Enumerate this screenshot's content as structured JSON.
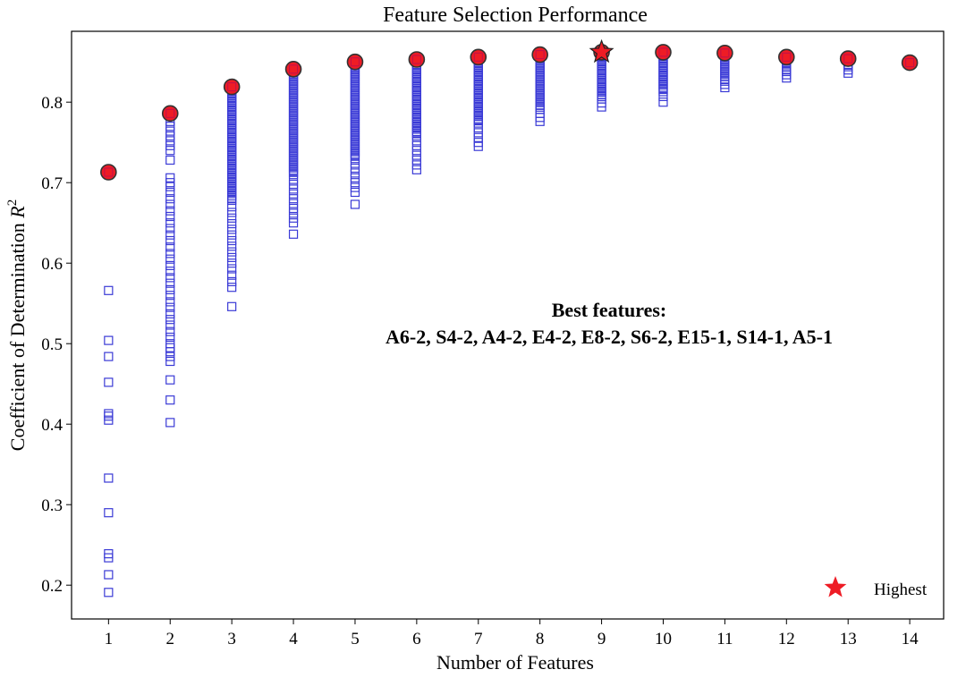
{
  "chart_data": {
    "type": "scatter",
    "title": "Feature Selection Performance",
    "xlabel": "Number of Features",
    "ylabel_main": "Coefficient of Determination ",
    "ylabel_sym": "R",
    "ylabel_sup": "2",
    "xlim": [
      0.4,
      14.55
    ],
    "ylim": [
      0.158,
      0.888
    ],
    "xticks": [
      1,
      2,
      3,
      4,
      5,
      6,
      7,
      8,
      9,
      10,
      11,
      12,
      13,
      14
    ],
    "yticks": [
      0.2,
      0.3,
      0.4,
      0.5,
      0.6,
      0.7,
      0.8
    ],
    "ytick_labels": [
      "0.2",
      "0.3",
      "0.4",
      "0.5",
      "0.6",
      "0.7",
      "0.8"
    ],
    "grid": false,
    "series": [
      {
        "role": "subsets",
        "color": "#3a3ad6",
        "marker": "open-square",
        "columns": [
          {
            "x": 1,
            "points": [
              0.191,
              0.213,
              0.234,
              0.239,
              0.29,
              0.333,
              0.405,
              0.41,
              0.413,
              0.452,
              0.484,
              0.504,
              0.566,
              0.713
            ],
            "dense": []
          },
          {
            "x": 2,
            "points": [
              0.402,
              0.43,
              0.455,
              0.478,
              0.484,
              0.49,
              0.495,
              0.5,
              0.508,
              0.515,
              0.523,
              0.53,
              0.537,
              0.545,
              0.552,
              0.56,
              0.567,
              0.575,
              0.582,
              0.59,
              0.597,
              0.605,
              0.612,
              0.62,
              0.628,
              0.635,
              0.643,
              0.65,
              0.658,
              0.665,
              0.673,
              0.68,
              0.688,
              0.695,
              0.7,
              0.706,
              0.728,
              0.74,
              0.746,
              0.752,
              0.758,
              0.764,
              0.77,
              0.776,
              0.786
            ],
            "dense": []
          },
          {
            "x": 3,
            "points": [
              0.546,
              0.57,
              0.577,
              0.585,
              0.593,
              0.6,
              0.607,
              0.614,
              0.621,
              0.628,
              0.635,
              0.642,
              0.649,
              0.656,
              0.663,
              0.67
            ],
            "dense": [
              [
                0.678,
                0.819
              ]
            ]
          },
          {
            "x": 4,
            "points": [
              0.636,
              0.65,
              0.656,
              0.662,
              0.668,
              0.674,
              0.68,
              0.686,
              0.692,
              0.698,
              0.704
            ],
            "dense": [
              [
                0.71,
                0.841
              ]
            ]
          },
          {
            "x": 5,
            "points": [
              0.673,
              0.688,
              0.694,
              0.7,
              0.706,
              0.712,
              0.718,
              0.724
            ],
            "dense": [
              [
                0.73,
                0.85
              ]
            ]
          },
          {
            "x": 6,
            "points": [
              0.716,
              0.722,
              0.728,
              0.734,
              0.74,
              0.746,
              0.752
            ],
            "dense": [
              [
                0.758,
                0.853
              ]
            ]
          },
          {
            "x": 7,
            "points": [
              0.745,
              0.75,
              0.756,
              0.762,
              0.768
            ],
            "dense": [
              [
                0.774,
                0.856
              ]
            ]
          },
          {
            "x": 8,
            "points": [
              0.776,
              0.781,
              0.786
            ],
            "dense": [
              [
                0.791,
                0.859
              ]
            ]
          },
          {
            "x": 9,
            "points": [
              0.794,
              0.799
            ],
            "dense": [
              [
                0.804,
                0.862
              ]
            ]
          },
          {
            "x": 10,
            "points": [
              0.8,
              0.807
            ],
            "dense": [
              [
                0.813,
                0.862
              ]
            ]
          },
          {
            "x": 11,
            "points": [
              0.818,
              0.822
            ],
            "dense": [
              [
                0.826,
                0.861
              ]
            ]
          },
          {
            "x": 12,
            "points": [
              0.83,
              0.834
            ],
            "dense": [
              [
                0.838,
                0.856
              ]
            ]
          },
          {
            "x": 13,
            "points": [
              0.836,
              0.84,
              0.844
            ],
            "dense": [
              [
                0.847,
                0.854
              ]
            ]
          },
          {
            "x": 14,
            "points": [
              0.849
            ],
            "dense": []
          }
        ]
      },
      {
        "role": "best-per-count",
        "color": "#ee1c25",
        "marker": "circle",
        "x": [
          1,
          2,
          3,
          4,
          5,
          6,
          7,
          8,
          9,
          10,
          11,
          12,
          13,
          14
        ],
        "y": [
          0.713,
          0.786,
          0.819,
          0.841,
          0.85,
          0.853,
          0.856,
          0.859,
          0.862,
          0.862,
          0.861,
          0.856,
          0.854,
          0.849
        ]
      }
    ],
    "highest": {
      "x": 9,
      "y": 0.862,
      "marker": "star",
      "color": "#ee1c25"
    },
    "annotation": {
      "line1": "Best features:",
      "line2": "A6-2, S4-2, A4-2, E4-2, E8-2, S6-2, E15-1, S14-1, A5-1"
    },
    "legend": {
      "label": "Highest",
      "placement": "lower right"
    }
  }
}
